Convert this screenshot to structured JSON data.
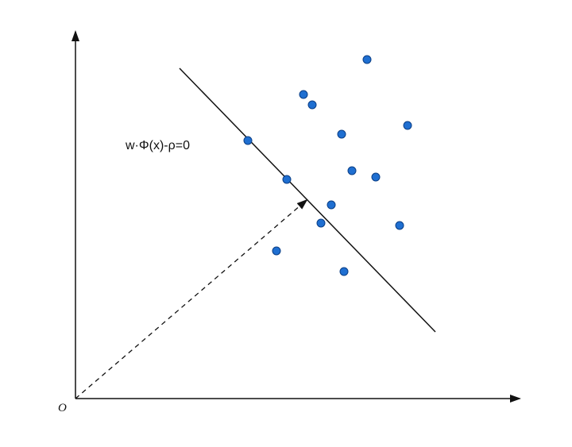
{
  "diagram": {
    "origin_label": "O",
    "hyperplane_label": "w·Φ(x)-ρ=0"
  },
  "colors": {
    "point_fill": "#1f6fd1",
    "point_stroke": "#0b3f86",
    "line": "#111111",
    "background": "#ffffff"
  }
}
